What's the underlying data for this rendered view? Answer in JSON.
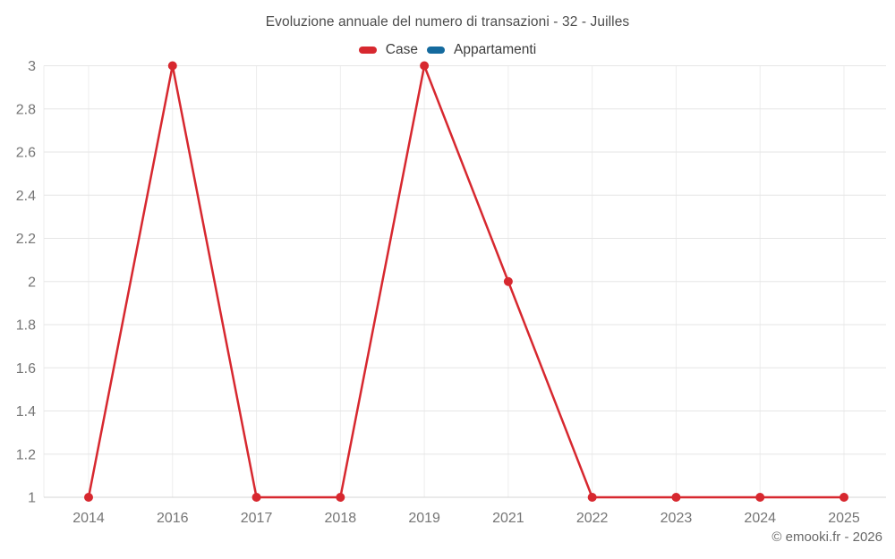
{
  "title": "Evoluzione annuale del numero di transazioni - 32 - Juilles",
  "footer": "© emooki.fr - 2026",
  "legend": [
    {
      "label": "Case",
      "color": "#d7282f"
    },
    {
      "label": "Appartamenti",
      "color": "#146a9e"
    }
  ],
  "colors": {
    "case_red": "#d7282f",
    "appartamenti_blue": "#146a9e",
    "grid_horizontal": "#e6e6e6",
    "grid_vertical": "#ededed",
    "axis_line": "#d6d6d6",
    "tick_label": "#757575",
    "title_text": "#4c4c4c",
    "footer_text": "#696969"
  },
  "chart_data": {
    "type": "line",
    "title": "Evoluzione annuale del numero di transazioni - 32 - Juilles",
    "categories": [
      "2014",
      "2016",
      "2017",
      "2018",
      "2019",
      "2021",
      "2022",
      "2023",
      "2024",
      "2025"
    ],
    "series": [
      {
        "name": "Case",
        "color": "#d7282f",
        "values": [
          1,
          3,
          1,
          1,
          3,
          2,
          1,
          1,
          1,
          1
        ]
      },
      {
        "name": "Appartamenti",
        "color": "#146a9e",
        "values": []
      }
    ],
    "xlabel": "",
    "ylabel": "",
    "ylim": [
      1,
      3
    ],
    "y_ticks": [
      1,
      1.2,
      1.4,
      1.6,
      1.8,
      2,
      2.2,
      2.4,
      2.6,
      2.8,
      3
    ],
    "grid": true,
    "legend_position": "top",
    "marker": "circle"
  }
}
